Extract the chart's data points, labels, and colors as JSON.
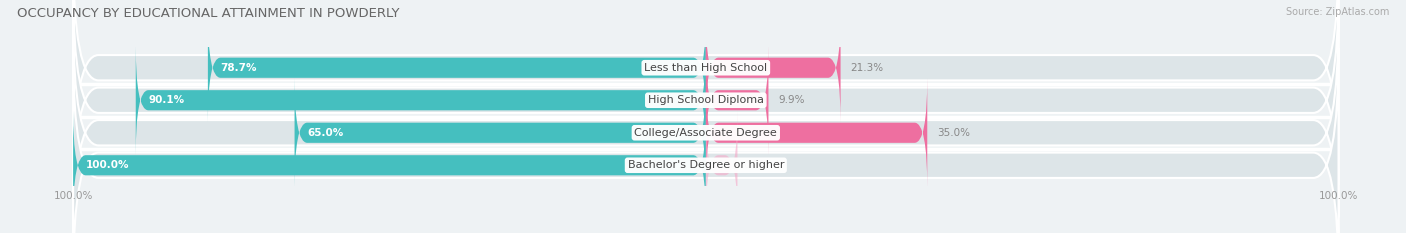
{
  "title": "OCCUPANCY BY EDUCATIONAL ATTAINMENT IN POWDERLY",
  "source": "Source: ZipAtlas.com",
  "categories": [
    "Less than High School",
    "High School Diploma",
    "College/Associate Degree",
    "Bachelor's Degree or higher"
  ],
  "owner_values": [
    78.7,
    90.1,
    65.0,
    100.0
  ],
  "renter_values": [
    21.3,
    9.9,
    35.0,
    0.0
  ],
  "owner_color": "#45BFBF",
  "renter_color": "#EE6FA0",
  "renter_color_light": "#F5A8C8",
  "background_color": "#eef2f4",
  "row_bg_color": "#dde5e8",
  "title_color": "#666666",
  "label_color": "#555555",
  "tick_color": "#999999",
  "title_fontsize": 9.5,
  "label_fontsize": 8.0,
  "value_fontsize": 7.5,
  "tick_fontsize": 7.5,
  "legend_fontsize": 8.5
}
